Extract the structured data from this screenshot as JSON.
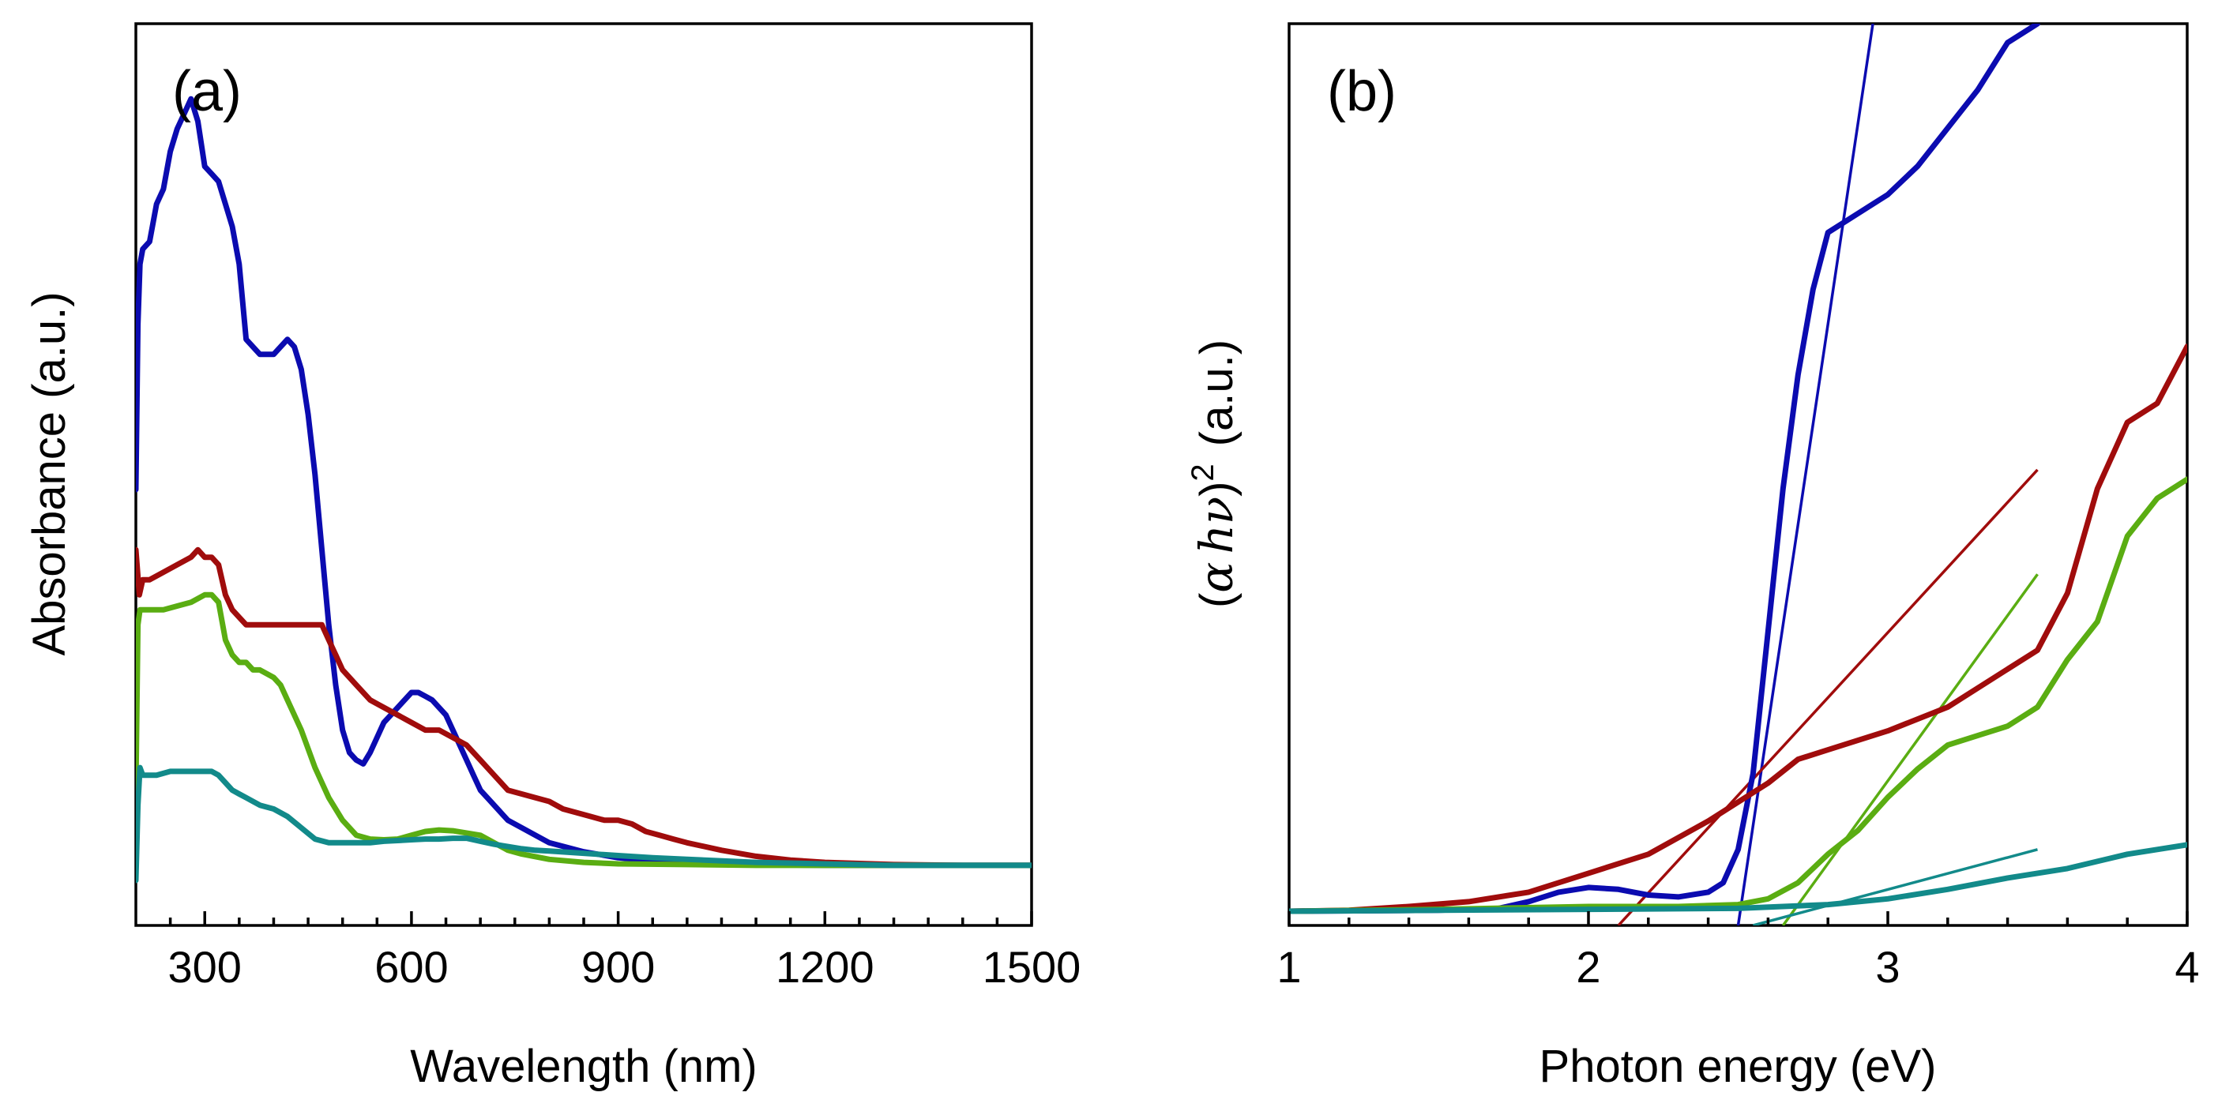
{
  "colors": {
    "blue": "#0b0bb0",
    "red": "#a00c0c",
    "green": "#5aad12",
    "teal": "#128a8a"
  },
  "chart_data": [
    {
      "type": "line",
      "panel_label": "(a)",
      "xlabel": "Wavelength (nm)",
      "ylabel": "Absorbance (a.u.)",
      "xlim": [
        200,
        1500
      ],
      "ylim": [
        -0.08,
        1.12
      ],
      "xticks": [
        300,
        600,
        900,
        1200,
        1500
      ],
      "xtick_labels": [
        "300",
        "600",
        "900",
        "1200",
        "1500"
      ],
      "y_tick_labels_shown": false,
      "series": [
        {
          "name": "blue",
          "color": "#0b0bb0",
          "x": [
            200,
            203,
            206,
            210,
            220,
            230,
            240,
            250,
            260,
            270,
            280,
            290,
            300,
            310,
            320,
            330,
            340,
            350,
            360,
            370,
            380,
            390,
            400,
            410,
            420,
            430,
            440,
            450,
            460,
            470,
            480,
            490,
            500,
            510,
            520,
            530,
            540,
            550,
            560,
            570,
            580,
            590,
            600,
            610,
            620,
            630,
            640,
            650,
            660,
            670,
            680,
            690,
            700,
            720,
            740,
            760,
            780,
            800,
            850,
            900,
            950,
            1000,
            1100,
            1200,
            1300,
            1400,
            1500
          ],
          "y": [
            0.5,
            0.72,
            0.8,
            0.82,
            0.83,
            0.88,
            0.9,
            0.95,
            0.98,
            1.0,
            1.02,
            0.99,
            0.93,
            0.92,
            0.91,
            0.88,
            0.85,
            0.8,
            0.7,
            0.69,
            0.68,
            0.68,
            0.68,
            0.69,
            0.7,
            0.69,
            0.66,
            0.6,
            0.52,
            0.42,
            0.32,
            0.24,
            0.18,
            0.15,
            0.14,
            0.135,
            0.15,
            0.17,
            0.19,
            0.2,
            0.21,
            0.22,
            0.23,
            0.23,
            0.225,
            0.22,
            0.21,
            0.2,
            0.18,
            0.16,
            0.14,
            0.12,
            0.1,
            0.08,
            0.06,
            0.05,
            0.04,
            0.03,
            0.018,
            0.01,
            0.006,
            0.003,
            0.001,
            0.0,
            0.0,
            0.0,
            0.0
          ]
        },
        {
          "name": "red",
          "color": "#a00c0c",
          "x": [
            200,
            205,
            210,
            220,
            240,
            260,
            280,
            290,
            300,
            310,
            320,
            330,
            340,
            350,
            360,
            380,
            400,
            420,
            440,
            460,
            470,
            480,
            490,
            500,
            520,
            540,
            560,
            580,
            600,
            620,
            640,
            660,
            680,
            700,
            720,
            740,
            760,
            780,
            800,
            820,
            840,
            860,
            880,
            900,
            920,
            940,
            960,
            980,
            1000,
            1050,
            1100,
            1150,
            1200,
            1300,
            1400,
            1500
          ],
          "y": [
            0.42,
            0.36,
            0.38,
            0.38,
            0.39,
            0.4,
            0.41,
            0.42,
            0.41,
            0.41,
            0.4,
            0.36,
            0.34,
            0.33,
            0.32,
            0.32,
            0.32,
            0.32,
            0.32,
            0.32,
            0.32,
            0.3,
            0.28,
            0.26,
            0.24,
            0.22,
            0.21,
            0.2,
            0.19,
            0.18,
            0.18,
            0.17,
            0.16,
            0.14,
            0.12,
            0.1,
            0.095,
            0.09,
            0.085,
            0.075,
            0.07,
            0.065,
            0.06,
            0.06,
            0.055,
            0.045,
            0.04,
            0.035,
            0.03,
            0.02,
            0.012,
            0.007,
            0.004,
            0.001,
            0.0,
            0.0
          ]
        },
        {
          "name": "green",
          "color": "#5aad12",
          "x": [
            200,
            203,
            206,
            210,
            220,
            240,
            260,
            280,
            300,
            310,
            320,
            330,
            340,
            350,
            360,
            370,
            380,
            390,
            400,
            410,
            420,
            440,
            460,
            480,
            500,
            520,
            540,
            560,
            580,
            600,
            620,
            640,
            660,
            680,
            700,
            720,
            740,
            760,
            800,
            850,
            900,
            1000,
            1100,
            1200,
            1300,
            1400,
            1500
          ],
          "y": [
            0.1,
            0.32,
            0.34,
            0.34,
            0.34,
            0.34,
            0.345,
            0.35,
            0.36,
            0.36,
            0.35,
            0.3,
            0.28,
            0.27,
            0.27,
            0.26,
            0.26,
            0.255,
            0.25,
            0.24,
            0.22,
            0.18,
            0.13,
            0.09,
            0.06,
            0.04,
            0.035,
            0.034,
            0.035,
            0.04,
            0.045,
            0.047,
            0.046,
            0.043,
            0.04,
            0.03,
            0.02,
            0.015,
            0.008,
            0.004,
            0.002,
            0.001,
            0.0,
            0.0,
            0.0,
            0.0,
            0.0
          ]
        },
        {
          "name": "teal",
          "color": "#128a8a",
          "x": [
            200,
            203,
            206,
            210,
            230,
            250,
            270,
            290,
            310,
            320,
            330,
            340,
            350,
            360,
            380,
            400,
            420,
            440,
            460,
            480,
            500,
            520,
            540,
            560,
            580,
            600,
            620,
            640,
            660,
            680,
            700,
            720,
            740,
            760,
            780,
            800,
            850,
            900,
            950,
            1000,
            1100,
            1200,
            1300,
            1400,
            1500
          ],
          "y": [
            -0.02,
            0.08,
            0.13,
            0.12,
            0.12,
            0.125,
            0.125,
            0.125,
            0.125,
            0.12,
            0.11,
            0.1,
            0.095,
            0.09,
            0.08,
            0.075,
            0.065,
            0.05,
            0.035,
            0.03,
            0.03,
            0.03,
            0.03,
            0.032,
            0.033,
            0.034,
            0.035,
            0.035,
            0.036,
            0.036,
            0.032,
            0.028,
            0.025,
            0.022,
            0.02,
            0.019,
            0.016,
            0.013,
            0.01,
            0.008,
            0.004,
            0.002,
            0.0,
            0.0,
            0.0
          ]
        }
      ]
    },
    {
      "type": "line",
      "panel_label": "(b)",
      "xlabel": "Photon energy (eV)",
      "ylabel_open": "(",
      "ylabel_alpha": "α",
      "ylabel_h": "h",
      "ylabel_nu": "ν",
      "ylabel_close": ")",
      "ylabel_exp": "2",
      "ylabel_unit": "(a.u.)",
      "xlim": [
        1,
        4
      ],
      "ylim": [
        -0.01,
        0.94
      ],
      "xticks": [
        1,
        2,
        3,
        4
      ],
      "xtick_labels": [
        "1",
        "2",
        "3",
        "4"
      ],
      "y_tick_labels_shown": false,
      "series": [
        {
          "name": "blue",
          "color": "#0b0bb0",
          "x": [
            1.0,
            1.5,
            1.7,
            1.8,
            1.9,
            2.0,
            2.1,
            2.2,
            2.3,
            2.4,
            2.45,
            2.5,
            2.55,
            2.6,
            2.65,
            2.7,
            2.75,
            2.8,
            2.9,
            3.0,
            3.1,
            3.2,
            3.3,
            3.4,
            3.5
          ],
          "y": [
            0.005,
            0.006,
            0.008,
            0.015,
            0.025,
            0.03,
            0.028,
            0.022,
            0.02,
            0.025,
            0.035,
            0.07,
            0.15,
            0.3,
            0.45,
            0.57,
            0.66,
            0.72,
            0.74,
            0.76,
            0.79,
            0.83,
            0.87,
            0.92,
            0.94
          ]
        },
        {
          "name": "red",
          "color": "#a00c0c",
          "x": [
            1.0,
            1.2,
            1.4,
            1.6,
            1.8,
            2.0,
            2.2,
            2.4,
            2.6,
            2.7,
            2.8,
            3.0,
            3.2,
            3.4,
            3.5,
            3.6,
            3.7,
            3.8,
            3.9,
            4.0
          ],
          "y": [
            0.005,
            0.006,
            0.01,
            0.015,
            0.025,
            0.045,
            0.065,
            0.1,
            0.14,
            0.165,
            0.175,
            0.195,
            0.22,
            0.26,
            0.28,
            0.34,
            0.45,
            0.52,
            0.54,
            0.6
          ]
        },
        {
          "name": "green",
          "color": "#5aad12",
          "x": [
            1.0,
            1.5,
            2.0,
            2.3,
            2.5,
            2.6,
            2.7,
            2.8,
            2.9,
            3.0,
            3.1,
            3.2,
            3.3,
            3.4,
            3.5,
            3.6,
            3.7,
            3.8,
            3.9,
            4.0
          ],
          "y": [
            0.005,
            0.007,
            0.01,
            0.01,
            0.012,
            0.018,
            0.035,
            0.065,
            0.09,
            0.125,
            0.155,
            0.18,
            0.19,
            0.2,
            0.22,
            0.27,
            0.31,
            0.4,
            0.44,
            0.46
          ]
        },
        {
          "name": "teal",
          "color": "#128a8a",
          "x": [
            1.0,
            1.5,
            2.0,
            2.5,
            2.8,
            3.0,
            3.2,
            3.4,
            3.6,
            3.8,
            3.9,
            4.0
          ],
          "y": [
            0.005,
            0.006,
            0.007,
            0.008,
            0.012,
            0.018,
            0.028,
            0.04,
            0.05,
            0.065,
            0.07,
            0.075
          ]
        }
      ],
      "fit_lines": [
        {
          "name": "blue-fit",
          "color": "#0b0bb0",
          "x": [
            2.5,
            2.95
          ],
          "y": [
            -0.01,
            0.94
          ]
        },
        {
          "name": "red-fit",
          "color": "#a00c0c",
          "x": [
            2.1,
            3.5
          ],
          "y": [
            -0.01,
            0.47
          ]
        },
        {
          "name": "green-fit",
          "color": "#5aad12",
          "x": [
            2.65,
            3.5
          ],
          "y": [
            -0.01,
            0.36
          ]
        },
        {
          "name": "teal-fit",
          "color": "#128a8a",
          "x": [
            2.55,
            3.5
          ],
          "y": [
            -0.01,
            0.07
          ]
        }
      ]
    }
  ]
}
